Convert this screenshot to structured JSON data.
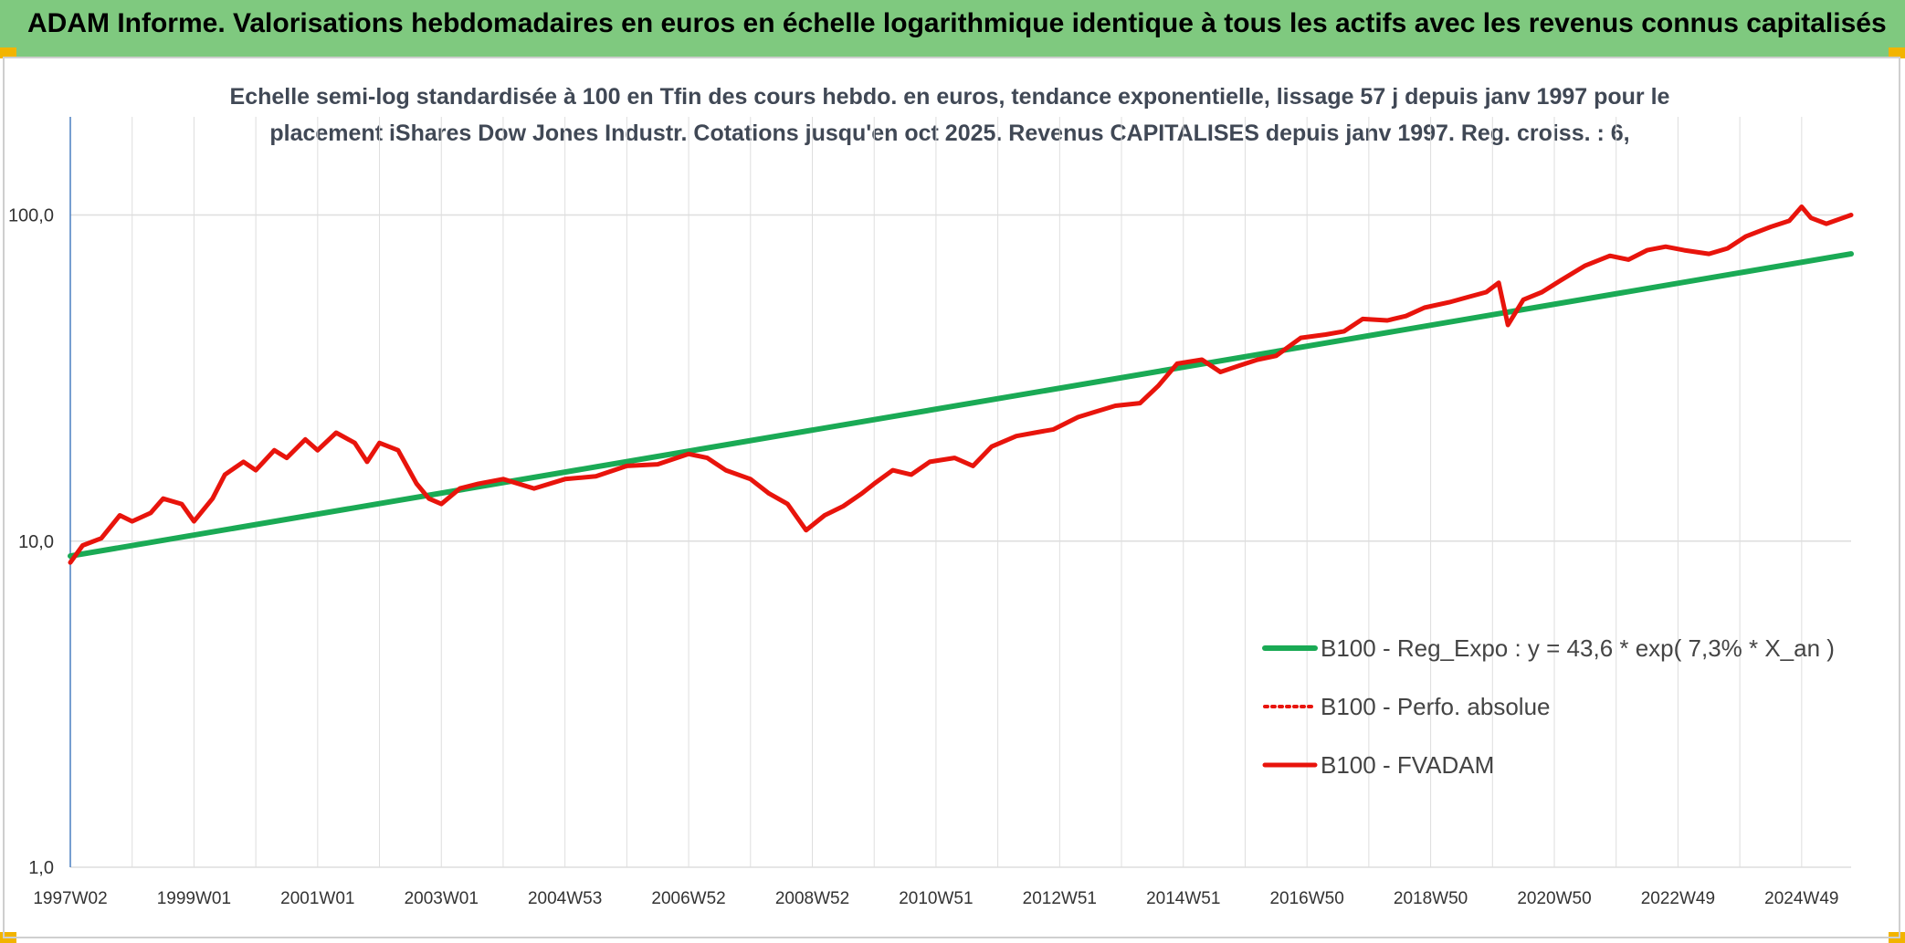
{
  "banner": {
    "title": "ADAM Informe. Valorisations hebdomadaires en euros en échelle logarithmique identique à tous les actifs avec les revenus connus capitalisés"
  },
  "chart_data": {
    "type": "line",
    "title": "Echelle semi-log standardisée à 100 en Tfin des cours hebdo. en euros, tendance exponentielle, lissage 57 j depuis janv 1997 pour le placement iShares Dow Jones Industr. Cotations jusqu'en oct 2025. Revenus CAPITALISES depuis janv 1997. Reg. croiss. : 6,",
    "y_scale": "log",
    "ylim": [
      1,
      200
    ],
    "y_ticks": [
      1,
      10,
      100
    ],
    "y_tick_labels": [
      "1,0",
      "10,0",
      "100,0"
    ],
    "xlim": [
      1997.0,
      2025.8
    ],
    "x_ticks": [
      1997.0,
      1999.0,
      2001.0,
      2003.0,
      2005.0,
      2007.0,
      2009.0,
      2011.0,
      2013.0,
      2015.0,
      2017.0,
      2019.0,
      2021.0,
      2023.0,
      2025.0
    ],
    "x_tick_labels": [
      "1997W02",
      "1999W01",
      "2001W01",
      "2003W01",
      "2004W53",
      "2006W52",
      "2008W52",
      "2010W51",
      "2012W51",
      "2014W51",
      "2016W50",
      "2018W50",
      "2020W50",
      "2022W49",
      "2024W49"
    ],
    "grid": true,
    "legend_position": "bottom-right",
    "series": [
      {
        "name": "B100 - Reg_Expo : y = 43,6 * exp( 7,3% *  X_an )",
        "color": "#1aaa55",
        "style": "solid",
        "x": [
          1997.0,
          2025.8
        ],
        "y": [
          9.0,
          76.0
        ]
      },
      {
        "name": "B100 - Perfo. absolue",
        "color": "#e8140c",
        "style": "dotted",
        "x": [],
        "y": []
      },
      {
        "name": "B100 - FVADAM",
        "color": "#e8140c",
        "style": "solid",
        "x": [
          1997.0,
          1997.2,
          1997.5,
          1997.8,
          1998.0,
          1998.3,
          1998.5,
          1998.8,
          1999.0,
          1999.3,
          1999.5,
          1999.8,
          2000.0,
          2000.3,
          2000.5,
          2000.8,
          2001.0,
          2001.3,
          2001.6,
          2001.8,
          2002.0,
          2002.3,
          2002.6,
          2002.8,
          2003.0,
          2003.3,
          2003.6,
          2004.0,
          2004.5,
          2005.0,
          2005.5,
          2006.0,
          2006.5,
          2007.0,
          2007.3,
          2007.6,
          2008.0,
          2008.3,
          2008.6,
          2008.9,
          2009.2,
          2009.5,
          2009.8,
          2010.0,
          2010.3,
          2010.6,
          2010.9,
          2011.3,
          2011.6,
          2011.9,
          2012.3,
          2012.6,
          2012.9,
          2013.3,
          2013.6,
          2013.9,
          2014.3,
          2014.6,
          2014.9,
          2015.3,
          2015.6,
          2015.9,
          2016.2,
          2016.5,
          2016.9,
          2017.3,
          2017.6,
          2017.9,
          2018.3,
          2018.6,
          2018.9,
          2019.3,
          2019.6,
          2019.9,
          2020.1,
          2020.25,
          2020.5,
          2020.8,
          2021.1,
          2021.5,
          2021.9,
          2022.2,
          2022.5,
          2022.8,
          2023.1,
          2023.5,
          2023.8,
          2024.1,
          2024.5,
          2024.8,
          2025.0,
          2025.15,
          2025.4,
          2025.8
        ],
        "y": [
          8.6,
          9.7,
          10.2,
          12.0,
          11.5,
          12.2,
          13.5,
          13.0,
          11.5,
          13.5,
          16.0,
          17.5,
          16.5,
          19.0,
          18.0,
          20.5,
          19.0,
          21.5,
          20.0,
          17.5,
          20.0,
          19.0,
          15.0,
          13.5,
          13.0,
          14.5,
          15.0,
          15.5,
          14.5,
          15.5,
          15.8,
          17.0,
          17.2,
          18.5,
          18.0,
          16.5,
          15.5,
          14.0,
          13.0,
          10.8,
          12.0,
          12.8,
          14.0,
          15.0,
          16.5,
          16.0,
          17.5,
          18.0,
          17.0,
          19.5,
          21.0,
          21.5,
          22.0,
          24.0,
          25.0,
          26.0,
          26.5,
          30.0,
          35.0,
          36.0,
          33.0,
          34.5,
          36.0,
          37.0,
          42.0,
          43.0,
          44.0,
          48.0,
          47.5,
          49.0,
          52.0,
          54.0,
          56.0,
          58.0,
          62.0,
          46.0,
          55.0,
          58.0,
          63.0,
          70.0,
          75.0,
          73.0,
          78.0,
          80.0,
          78.0,
          76.0,
          79.0,
          86.0,
          92.0,
          96.0,
          106.0,
          98.0,
          94.0,
          100.0
        ]
      }
    ]
  }
}
